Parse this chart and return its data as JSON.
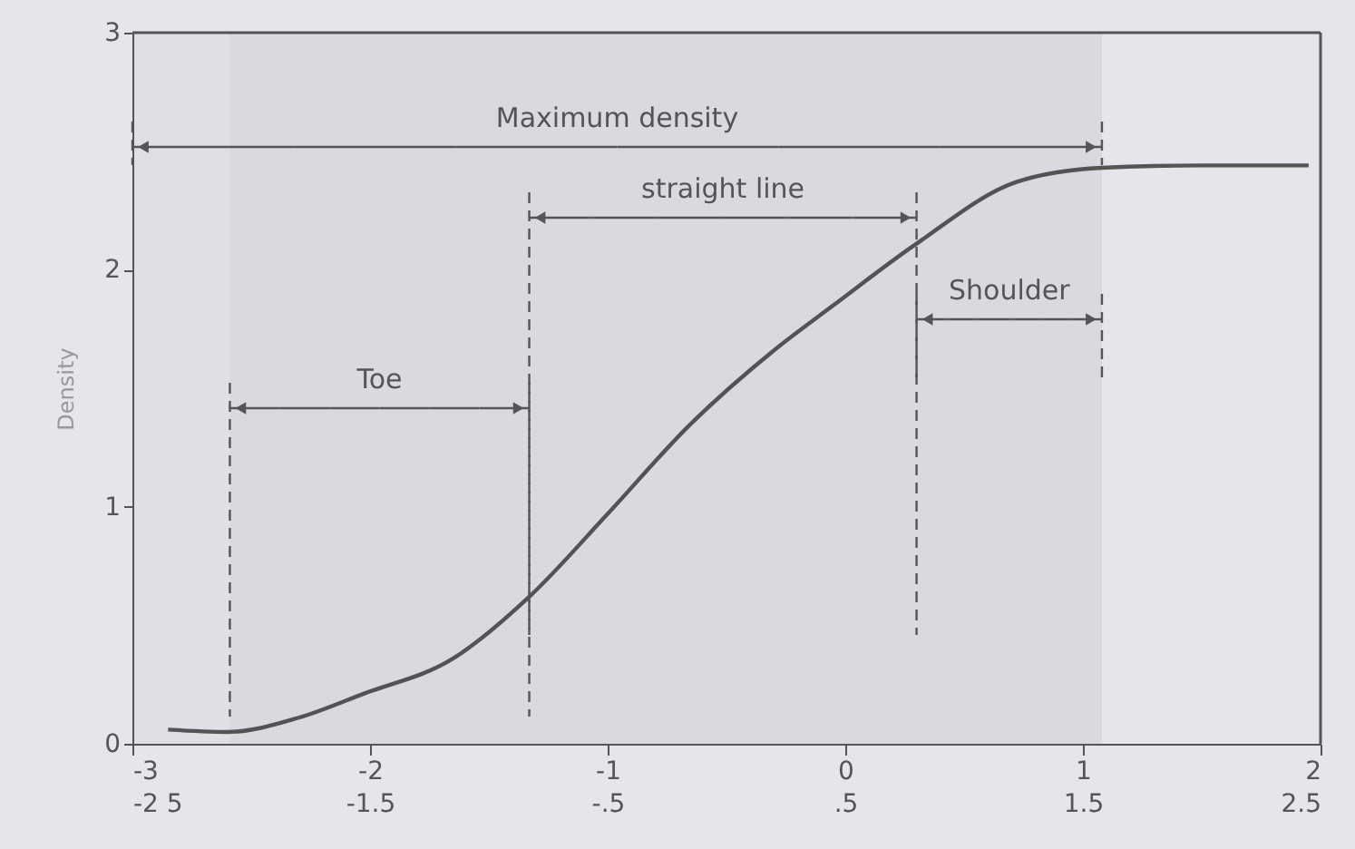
{
  "chart_data": {
    "type": "line",
    "ylabel": "Density",
    "x": [
      -2.85,
      -2.6,
      -2.3,
      -2.03,
      -1.65,
      -1.33,
      -1.0,
      -0.66,
      -0.3,
      -0.05,
      0.3,
      0.72,
      1.08,
      1.5,
      1.95
    ],
    "series": [
      {
        "color": "#555555",
        "values": [
          0.06,
          0.05,
          0.11,
          0.21,
          0.36,
          0.62,
          0.97,
          1.34,
          1.66,
          1.85,
          2.11,
          2.37,
          2.43,
          2.44,
          2.44
        ]
      }
    ],
    "xlim": [
      -3,
      2
    ],
    "xticks": [
      -3,
      -2,
      -1,
      0,
      1,
      2
    ],
    "x2lim": [
      -2.5,
      2.5
    ],
    "x2ticks": [
      {
        "value": -2.5,
        "label": "-2 5"
      },
      -1.5,
      {
        "value": -0.5,
        "label": "-.5"
      },
      {
        "value": 0.5,
        "label": ".5"
      },
      1.5,
      2.5
    ],
    "ylim": [
      0,
      3
    ],
    "yticks": [
      0,
      1,
      2,
      3
    ],
    "bands": [
      {
        "axis": "x",
        "from": -3,
        "to": 1.08,
        "label": "Maximum density",
        "color": "#555555"
      },
      {
        "axis": "x",
        "from": -1.33,
        "to": 0.3,
        "label": "straight line",
        "color": "#555555"
      },
      {
        "axis": "x",
        "from": 0.3,
        "to": 1.08,
        "label": "Shoulder",
        "color": "#555555"
      },
      {
        "axis": "x",
        "from": -2.59,
        "to": -1.33,
        "label": "Toe",
        "color": "#555555"
      }
    ],
    "grid": false,
    "marker": "none",
    "line_style": "solid"
  }
}
